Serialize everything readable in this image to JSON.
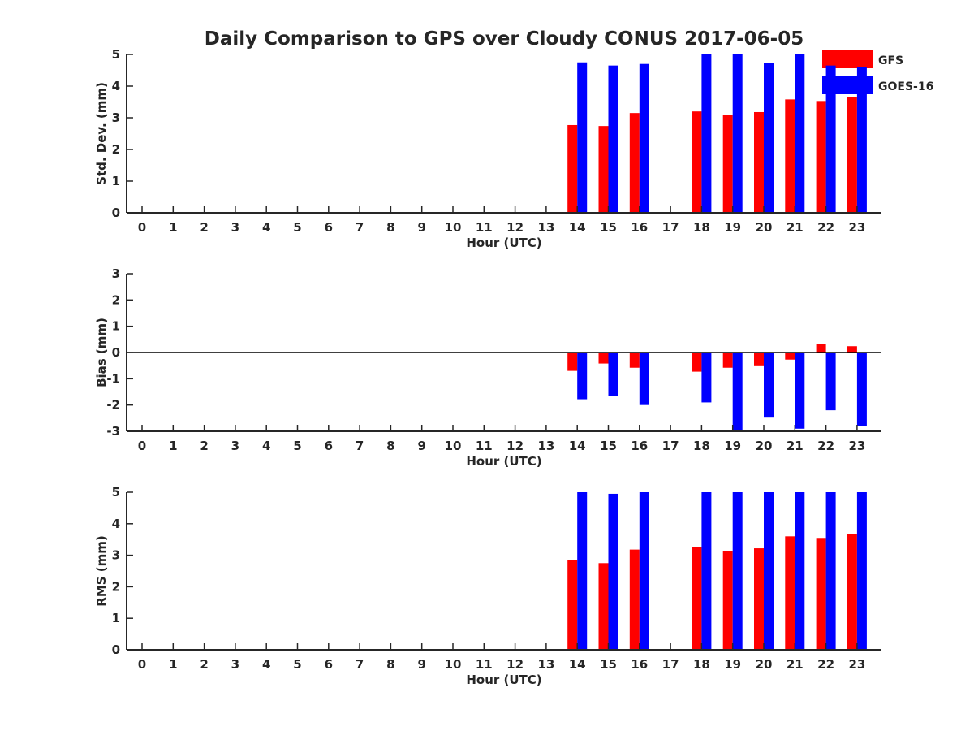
{
  "chart_data": {
    "title": "Daily Comparison to GPS over Cloudy CONUS 2017-06-05",
    "legend": {
      "placement": "top-right, outside",
      "entries": [
        {
          "name": "GFS",
          "color": "#ff0000"
        },
        {
          "name": "GOES-16",
          "color": "#0000ff"
        }
      ]
    },
    "colors": {
      "GFS": "#ff0000",
      "GOES-16": "#0000ff",
      "axis": "#262626",
      "zero_line": "#000000"
    },
    "charts": [
      {
        "type": "bar",
        "id": "stddev",
        "xlabel": "Hour (UTC)",
        "ylabel": "Std. Dev. (mm)",
        "ylim": [
          0,
          5
        ],
        "yticks": [
          0,
          1,
          2,
          3,
          4,
          5
        ],
        "categories": [
          "0",
          "1",
          "2",
          "3",
          "4",
          "5",
          "6",
          "7",
          "8",
          "9",
          "10",
          "11",
          "12",
          "13",
          "14",
          "15",
          "16",
          "17",
          "18",
          "19",
          "20",
          "21",
          "22",
          "23"
        ],
        "series": [
          {
            "name": "GFS",
            "values": [
              null,
              null,
              null,
              null,
              null,
              null,
              null,
              null,
              null,
              null,
              null,
              null,
              null,
              null,
              2.77,
              2.74,
              3.15,
              null,
              3.2,
              3.1,
              3.18,
              3.58,
              3.53,
              3.65
            ]
          },
          {
            "name": "GOES-16",
            "values": [
              null,
              null,
              null,
              null,
              null,
              null,
              null,
              null,
              null,
              null,
              null,
              null,
              null,
              null,
              4.75,
              4.65,
              4.7,
              null,
              5.0,
              5.0,
              4.73,
              5.0,
              4.65,
              4.6
            ]
          }
        ]
      },
      {
        "type": "bar",
        "id": "bias",
        "xlabel": "Hour (UTC)",
        "ylabel": "Bias (mm)",
        "ylim": [
          -3,
          3
        ],
        "yticks": [
          -3,
          -2,
          -1,
          0,
          1,
          2,
          3
        ],
        "zero_line": true,
        "categories": [
          "0",
          "1",
          "2",
          "3",
          "4",
          "5",
          "6",
          "7",
          "8",
          "9",
          "10",
          "11",
          "12",
          "13",
          "14",
          "15",
          "16",
          "17",
          "18",
          "19",
          "20",
          "21",
          "22",
          "23"
        ],
        "series": [
          {
            "name": "GFS",
            "values": [
              null,
              null,
              null,
              null,
              null,
              null,
              null,
              null,
              null,
              null,
              null,
              null,
              null,
              null,
              -0.7,
              -0.42,
              -0.58,
              null,
              -0.73,
              -0.58,
              -0.52,
              -0.27,
              0.33,
              0.24
            ]
          },
          {
            "name": "GOES-16",
            "values": [
              null,
              null,
              null,
              null,
              null,
              null,
              null,
              null,
              null,
              null,
              null,
              null,
              null,
              null,
              -1.78,
              -1.67,
              -2.0,
              null,
              -1.9,
              -3.0,
              -2.48,
              -2.9,
              -2.2,
              -2.8
            ]
          }
        ]
      },
      {
        "type": "bar",
        "id": "rms",
        "xlabel": "Hour (UTC)",
        "ylabel": "RMS (mm)",
        "ylim": [
          0,
          5
        ],
        "yticks": [
          0,
          1,
          2,
          3,
          4,
          5
        ],
        "categories": [
          "0",
          "1",
          "2",
          "3",
          "4",
          "5",
          "6",
          "7",
          "8",
          "9",
          "10",
          "11",
          "12",
          "13",
          "14",
          "15",
          "16",
          "17",
          "18",
          "19",
          "20",
          "21",
          "22",
          "23"
        ],
        "series": [
          {
            "name": "GFS",
            "values": [
              null,
              null,
              null,
              null,
              null,
              null,
              null,
              null,
              null,
              null,
              null,
              null,
              null,
              null,
              2.85,
              2.75,
              3.18,
              null,
              3.27,
              3.13,
              3.22,
              3.6,
              3.55,
              3.66
            ]
          },
          {
            "name": "GOES-16",
            "values": [
              null,
              null,
              null,
              null,
              null,
              null,
              null,
              null,
              null,
              null,
              null,
              null,
              null,
              null,
              5.0,
              4.95,
              5.0,
              null,
              5.0,
              5.0,
              5.0,
              5.0,
              5.0,
              5.0
            ]
          }
        ]
      }
    ]
  }
}
